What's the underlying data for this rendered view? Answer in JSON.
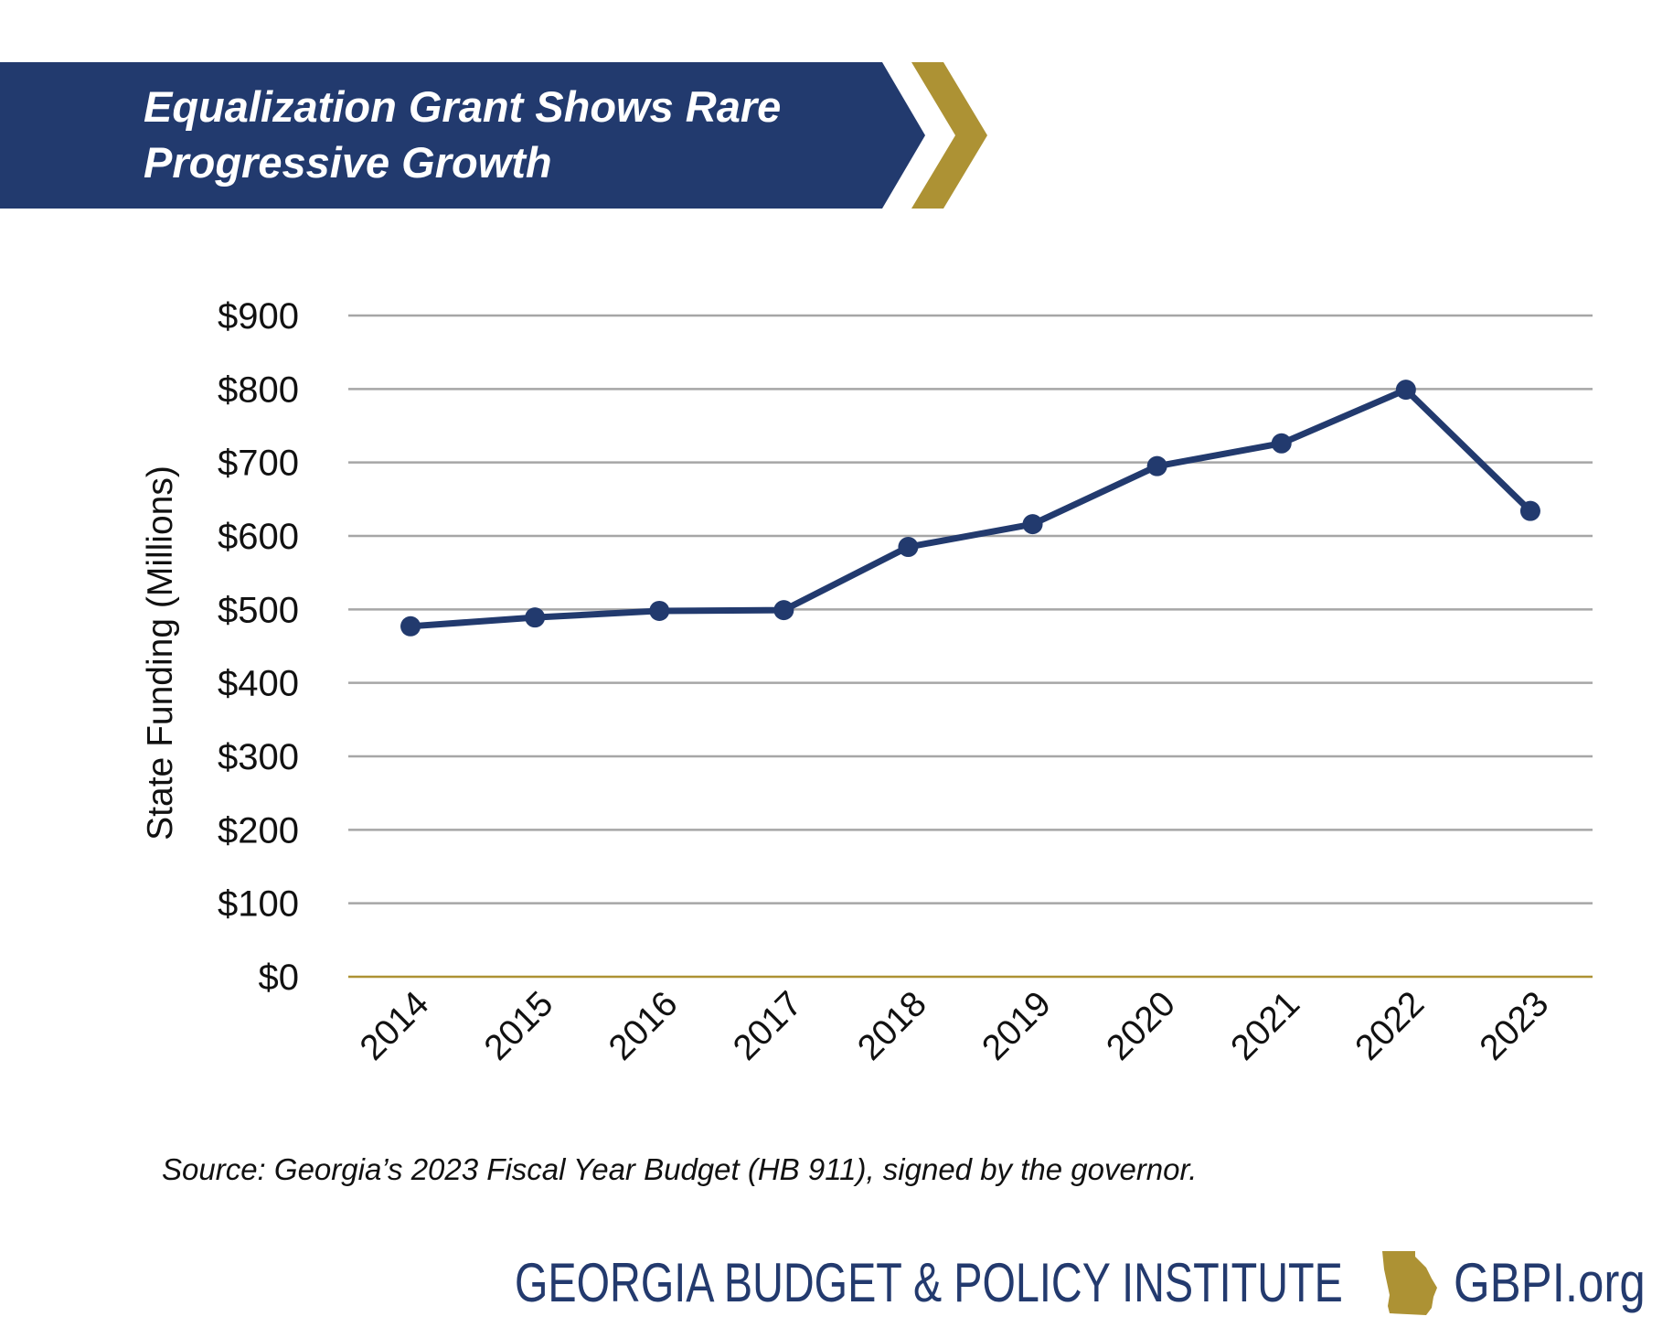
{
  "title_line1": "Equalization Grant Shows Rare",
  "title_line2": "Progressive Growth",
  "source": "Source: Georgia’s 2023 Fiscal Year Budget (HB 911), signed by the governor.",
  "footer": {
    "org": "GEORGIA BUDGET & POLICY INSTITUTE",
    "site": "GBPI.org",
    "logo_icon": "georgia-state-map"
  },
  "colors": {
    "navy": "#223a6e",
    "gold": "#ad9234",
    "grid": "#a6a6a6"
  },
  "chart_data": {
    "type": "line",
    "title": "Equalization Grant Shows Rare Progressive Growth",
    "xlabel": "",
    "ylabel": "State Funding (Millions)",
    "categories": [
      "2014",
      "2015",
      "2016",
      "2017",
      "2018",
      "2019",
      "2020",
      "2021",
      "2022",
      "2023"
    ],
    "values": [
      477,
      489,
      498,
      499,
      585,
      616,
      695,
      726,
      799,
      634
    ],
    "ylim": [
      0,
      900
    ],
    "yticks": [
      "$0",
      "$100",
      "$200",
      "$300",
      "$400",
      "$500",
      "$600",
      "$700",
      "$800",
      "$900"
    ],
    "grid": true,
    "legend": "none"
  }
}
